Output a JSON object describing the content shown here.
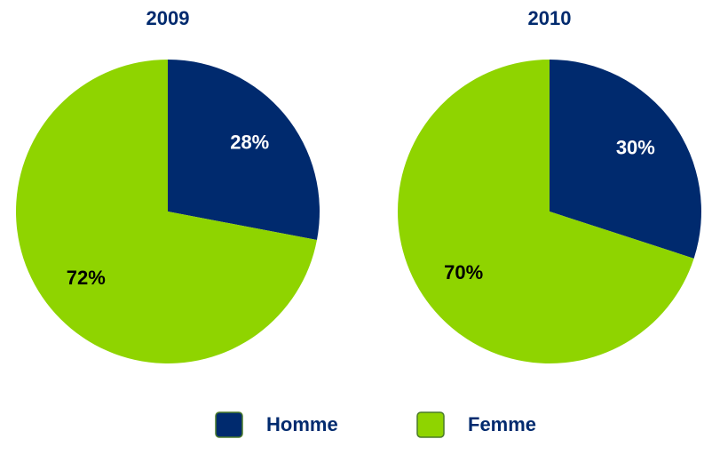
{
  "chart_data": [
    {
      "type": "pie",
      "title": "2009",
      "categories": [
        "Homme",
        "Femme"
      ],
      "values": [
        28,
        72
      ],
      "value_labels": [
        "28%",
        "72%"
      ],
      "colors": [
        "#002a6e",
        "#8fd400"
      ],
      "legend": "bottom"
    },
    {
      "type": "pie",
      "title": "2010",
      "categories": [
        "Homme",
        "Femme"
      ],
      "values": [
        30,
        70
      ],
      "value_labels": [
        "30%",
        "70%"
      ],
      "colors": [
        "#002a6e",
        "#8fd400"
      ],
      "legend": "bottom"
    }
  ]
}
